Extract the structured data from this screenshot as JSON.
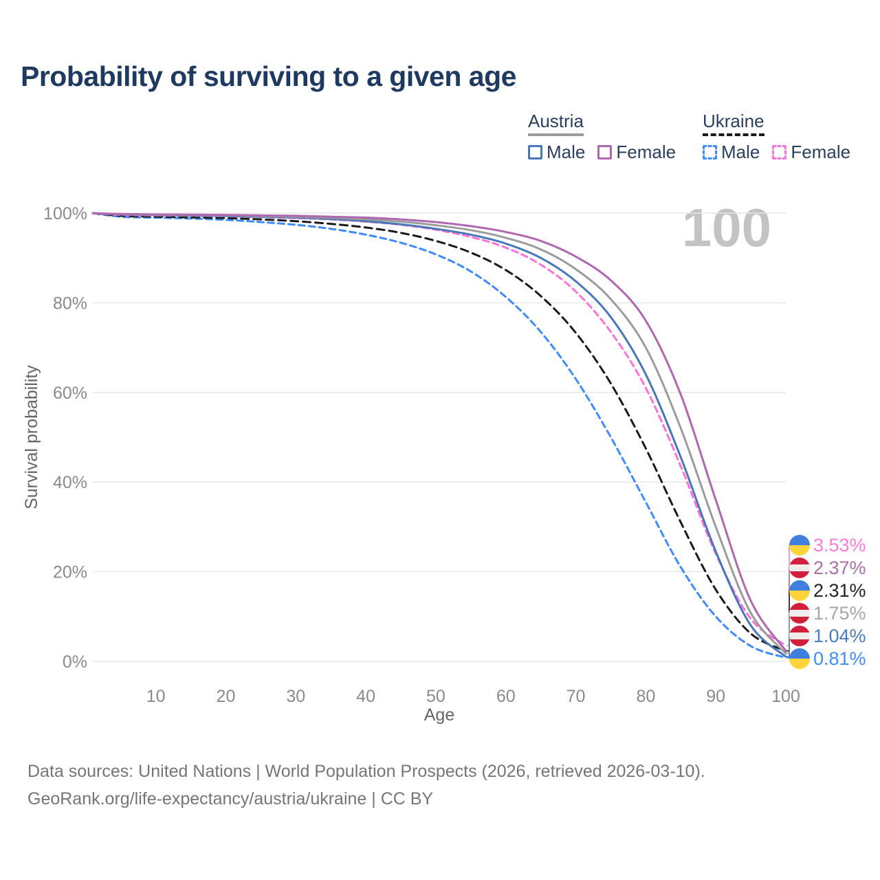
{
  "title": "Probability of surviving to a given age",
  "watermark": "100",
  "legend": {
    "groups": [
      {
        "label": "Austria",
        "underline_style": "solid",
        "underline_color": "#9b9b9b",
        "items": [
          {
            "label": "Male",
            "color": "#4677b8",
            "dash": false
          },
          {
            "label": "Female",
            "color": "#b066b0",
            "dash": false
          }
        ]
      },
      {
        "label": "Ukraine",
        "underline_style": "dashed",
        "underline_color": "#1a1a1a",
        "items": [
          {
            "label": "Male",
            "color": "#3d8bfd",
            "dash": true
          },
          {
            "label": "Female",
            "color": "#ff70d8",
            "dash": true
          }
        ]
      }
    ]
  },
  "chart_data": {
    "type": "line",
    "title": "Probability of surviving to a given age",
    "xlabel": "Age",
    "ylabel": "Survival probability",
    "xlim": [
      1,
      100
    ],
    "ylim": [
      0,
      100
    ],
    "grid": "horizontal",
    "x_ticks": [
      10,
      20,
      30,
      40,
      50,
      60,
      70,
      80,
      90,
      100
    ],
    "y_ticks": [
      {
        "value": 0,
        "label": "0%"
      },
      {
        "value": 20,
        "label": "20%"
      },
      {
        "value": 40,
        "label": "40%"
      },
      {
        "value": 60,
        "label": "60%"
      },
      {
        "value": 80,
        "label": "80%"
      },
      {
        "value": 100,
        "label": "100%"
      }
    ],
    "ages": [
      1,
      5,
      10,
      15,
      20,
      25,
      30,
      35,
      40,
      45,
      50,
      55,
      60,
      65,
      70,
      75,
      80,
      85,
      90,
      95,
      100
    ],
    "series": [
      {
        "id": "ukraine-male",
        "name": "Ukraine Male",
        "color": "#3d8bfd",
        "dash": true,
        "values": [
          100,
          99.2,
          99.0,
          98.8,
          98.5,
          98.0,
          97.4,
          96.5,
          95.2,
          93.4,
          90.8,
          87.0,
          81.3,
          73.5,
          63.0,
          50.0,
          35.5,
          21.0,
          10.0,
          3.4,
          0.81
        ]
      },
      {
        "id": "ukraine-total",
        "name": "Ukraine Total",
        "color": "#1a1a1a",
        "dash": true,
        "values": [
          100,
          99.4,
          99.2,
          99.05,
          98.9,
          98.6,
          98.2,
          97.6,
          96.8,
          95.6,
          93.8,
          91.2,
          87.3,
          81.5,
          73.3,
          62.0,
          47.5,
          31.0,
          16.0,
          6.2,
          2.31
        ]
      },
      {
        "id": "ukraine-female",
        "name": "Ukraine Female",
        "color": "#ff70d8",
        "dash": true,
        "values": [
          100,
          99.6,
          99.5,
          99.4,
          99.3,
          99.1,
          98.9,
          98.6,
          98.1,
          97.4,
          96.3,
          94.7,
          92.3,
          88.5,
          82.5,
          73.5,
          61.0,
          43.5,
          24.0,
          9.5,
          3.53
        ]
      },
      {
        "id": "austria-male",
        "name": "Austria Male",
        "color": "#4677b8",
        "dash": false,
        "values": [
          100,
          99.7,
          99.55,
          99.45,
          99.35,
          99.2,
          99.0,
          98.7,
          98.2,
          97.5,
          96.5,
          95.2,
          93.2,
          90.0,
          84.8,
          76.8,
          64.0,
          45.5,
          24.5,
          8.0,
          1.04
        ]
      },
      {
        "id": "austria-total",
        "name": "Austria Total",
        "color": "#9b9b9b",
        "dash": false,
        "values": [
          100,
          99.75,
          99.6,
          99.55,
          99.5,
          99.35,
          99.2,
          98.95,
          98.6,
          98.1,
          97.3,
          96.2,
          94.5,
          91.9,
          87.5,
          80.8,
          70.0,
          52.0,
          30.0,
          10.8,
          1.75
        ]
      },
      {
        "id": "austria-female",
        "name": "Austria Female",
        "color": "#b066b0",
        "dash": false,
        "values": [
          100,
          99.8,
          99.7,
          99.65,
          99.6,
          99.5,
          99.4,
          99.2,
          99.0,
          98.6,
          98.0,
          97.1,
          95.8,
          93.8,
          90.3,
          85.0,
          76.0,
          59.5,
          36.0,
          13.5,
          2.37
        ]
      }
    ],
    "end_labels": [
      {
        "value": "3.53%",
        "flag": "ukraine",
        "color": "#ff7ad6",
        "series": "ukraine-female"
      },
      {
        "value": "2.37%",
        "flag": "austria",
        "color": "#ab6fa8",
        "series": "austria-female"
      },
      {
        "value": "2.31%",
        "flag": "ukraine",
        "color": "#222222",
        "series": "ukraine-total"
      },
      {
        "value": "1.75%",
        "flag": "austria",
        "color": "#a6a6a6",
        "series": "austria-total"
      },
      {
        "value": "1.04%",
        "flag": "austria",
        "color": "#4a7cc0",
        "series": "austria-male"
      },
      {
        "value": "0.81%",
        "flag": "ukraine",
        "color": "#3e8ef7",
        "series": "ukraine-male"
      }
    ],
    "colors": {
      "grid": "#e6e6e6",
      "axis_text": "#8a8a8a",
      "axis_title": "#666666",
      "watermark": "#c3c3c3",
      "title": "#1f3a60"
    }
  },
  "footer": {
    "line1": "Data sources: United Nations | World Population Prospects (2026, retrieved 2026-03-10).",
    "line2": "GeoRank.org/life-expectancy/austria/ukraine | CC BY"
  }
}
